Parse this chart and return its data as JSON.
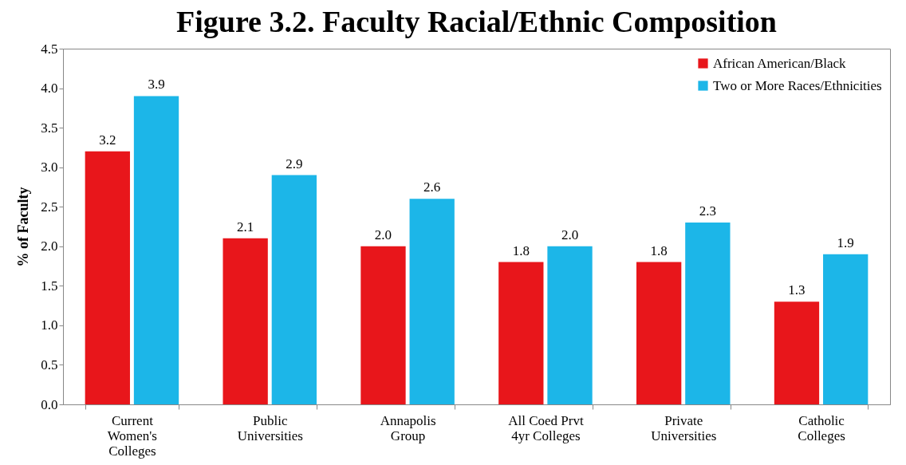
{
  "chart_data": {
    "type": "bar",
    "title": "Figure 3.2. Faculty Racial/Ethnic Composition",
    "ylabel": "% of Faculty",
    "categories": [
      "Current\nWomen's\nColleges",
      "Public\nUniversities",
      "Annapolis\nGroup",
      "All Coed Prvt\n4yr Colleges",
      "Private\nUniversities",
      "Catholic\nColleges"
    ],
    "series": [
      {
        "name": "African American/Black",
        "color": "#e8161b",
        "values": [
          3.2,
          2.1,
          2.0,
          1.8,
          1.8,
          1.3
        ],
        "value_labels": [
          "3.2",
          "2.1",
          "2.0",
          "1.8",
          "1.8",
          "1.3"
        ]
      },
      {
        "name": "Two or More Races/Ethnicities",
        "color": "#1cb6e8",
        "values": [
          3.9,
          2.9,
          2.6,
          2.0,
          2.3,
          1.9
        ],
        "value_labels": [
          "3.9",
          "2.9",
          "2.6",
          "2.0",
          "2.3",
          "1.9"
        ]
      }
    ],
    "ylim": [
      0,
      4.5
    ],
    "yticks": [
      {
        "value": 0,
        "label": "0.0"
      },
      {
        "value": 0.5,
        "label": "0.5"
      },
      {
        "value": 1,
        "label": "1.0"
      },
      {
        "value": 1.5,
        "label": "1.5"
      },
      {
        "value": 2,
        "label": "2.0"
      },
      {
        "value": 2.5,
        "label": "2.5"
      },
      {
        "value": 3,
        "label": "3.0"
      },
      {
        "value": 3.5,
        "label": "3.5"
      },
      {
        "value": 4,
        "label": "4.0"
      },
      {
        "value": 4.5,
        "label": "4.5"
      }
    ],
    "grid": false,
    "legend": "top right"
  }
}
